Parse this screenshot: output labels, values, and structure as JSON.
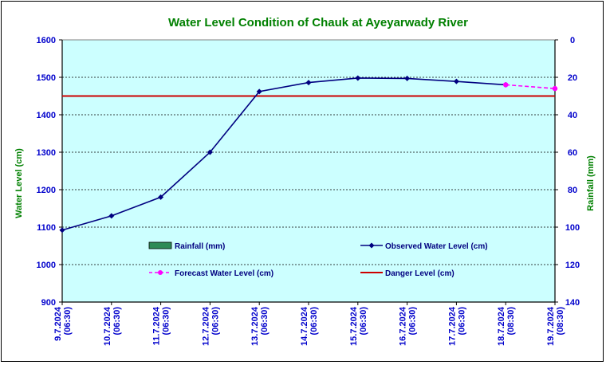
{
  "chart_data": {
    "type": "line",
    "title": "Water Level Condition of Chauk at Ayeyarwady River",
    "ylabel": "Water Level (cm)",
    "y2label": "Rainfall (mm)",
    "ylim": [
      900,
      1600
    ],
    "y2lim": [
      140,
      0
    ],
    "y_ticks": [
      "1600",
      "1500",
      "1400",
      "1300",
      "1200",
      "1100",
      "1000",
      "900"
    ],
    "y2_ticks": [
      "0",
      "20",
      "40",
      "60",
      "80",
      "100",
      "120",
      "140"
    ],
    "x_labels": [
      [
        "9.7.2024",
        "(06:30)"
      ],
      [
        "10.7.2024",
        "(06:30)"
      ],
      [
        "11.7.2024",
        "(06:30)"
      ],
      [
        "12.7.2024",
        "(06:30)"
      ],
      [
        "13.7.2024",
        "(06:30)"
      ],
      [
        "14.7.2024",
        "(06:30)"
      ],
      [
        "15.7.2024",
        "(06:30)"
      ],
      [
        "16.7.2024",
        "(06:30)"
      ],
      [
        "17.7.2024",
        "(06:30)"
      ],
      [
        "18.7.2024",
        "(08:30)"
      ],
      [
        "19.7.2024",
        "(08:30)"
      ]
    ],
    "grid": true,
    "series": [
      {
        "name": "Observed Water Level (cm)",
        "color": "#000080",
        "marker": "diamond",
        "values": [
          1092,
          1130,
          1180,
          1300,
          1462,
          1486,
          1498,
          1497,
          1489,
          1480,
          null
        ]
      },
      {
        "name": "Forecast Water Level (cm)",
        "color": "#ff00ff",
        "marker": "circle",
        "dashed": true,
        "values": [
          null,
          null,
          null,
          null,
          null,
          null,
          null,
          null,
          null,
          1480,
          1470
        ]
      },
      {
        "name": "Danger Level (cm)",
        "color": "#cc0000",
        "values": [
          1450,
          1450,
          1450,
          1450,
          1450,
          1450,
          1450,
          1450,
          1450,
          1450,
          1450
        ]
      },
      {
        "name": "Rainfall (mm)",
        "color": "#2e8b57",
        "type": "bar",
        "values": []
      }
    ],
    "plot_background": "#ccffff"
  }
}
